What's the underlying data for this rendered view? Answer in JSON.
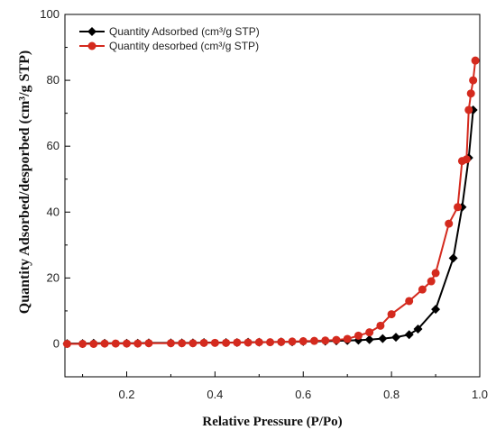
{
  "chart_data": {
    "type": "line",
    "title": "",
    "xlabel": "Relative Pressure (P/Po)",
    "ylabel": "Quantity Adsorbed/desporbed (cm³/g STP)",
    "xlim": [
      0.06,
      1.0
    ],
    "ylim": [
      -10,
      100
    ],
    "xticks": [
      0.2,
      0.4,
      0.6,
      0.8,
      1.0
    ],
    "xtick_labels": [
      "0.2",
      "0.4",
      "0.6",
      "0.8",
      "1.0"
    ],
    "yticks": [
      0,
      20,
      40,
      60,
      80,
      100
    ],
    "ytick_labels": [
      "0",
      "20",
      "40",
      "60",
      "80",
      "100"
    ],
    "grid": false,
    "legend_position": "top-left",
    "series": [
      {
        "name": "Quantity Adsorbed (cm³/g STP)",
        "color": "#000000",
        "marker": "diamond",
        "x": [
          0.065,
          0.1,
          0.125,
          0.15,
          0.2,
          0.225,
          0.25,
          0.3,
          0.325,
          0.35,
          0.375,
          0.425,
          0.45,
          0.475,
          0.5,
          0.55,
          0.575,
          0.6,
          0.65,
          0.675,
          0.7,
          0.725,
          0.75,
          0.78,
          0.81,
          0.84,
          0.86,
          0.9,
          0.94,
          0.96,
          0.975,
          0.985
        ],
        "y": [
          0.1,
          0.1,
          0.2,
          0.2,
          0.2,
          0.2,
          0.3,
          0.3,
          0.3,
          0.3,
          0.4,
          0.4,
          0.4,
          0.5,
          0.5,
          0.6,
          0.6,
          0.7,
          0.8,
          0.9,
          1.0,
          1.1,
          1.3,
          1.6,
          2.0,
          2.8,
          4.5,
          10.5,
          26.0,
          41.5,
          56.5,
          71.0
        ]
      },
      {
        "name": "Quantity desorbed (cm³/g STP)",
        "color": "#d42a1e",
        "marker": "circle",
        "x": [
          0.065,
          0.1,
          0.125,
          0.15,
          0.175,
          0.2,
          0.225,
          0.25,
          0.3,
          0.325,
          0.35,
          0.375,
          0.4,
          0.425,
          0.45,
          0.475,
          0.5,
          0.525,
          0.55,
          0.575,
          0.6,
          0.625,
          0.65,
          0.675,
          0.7,
          0.725,
          0.75,
          0.775,
          0.8,
          0.84,
          0.87,
          0.89,
          0.9,
          0.93,
          0.95,
          0.96,
          0.97,
          0.975,
          0.98,
          0.985,
          0.99
        ],
        "y": [
          0.0,
          0.0,
          0.0,
          0.1,
          0.1,
          0.1,
          0.1,
          0.2,
          0.2,
          0.2,
          0.2,
          0.3,
          0.3,
          0.3,
          0.4,
          0.4,
          0.5,
          0.5,
          0.6,
          0.7,
          0.8,
          0.9,
          1.0,
          1.2,
          1.5,
          2.5,
          3.5,
          5.5,
          9.0,
          13.0,
          16.5,
          19.0,
          21.5,
          36.5,
          41.5,
          55.5,
          56.0,
          71.0,
          76.0,
          80.0,
          86.0
        ]
      }
    ]
  }
}
